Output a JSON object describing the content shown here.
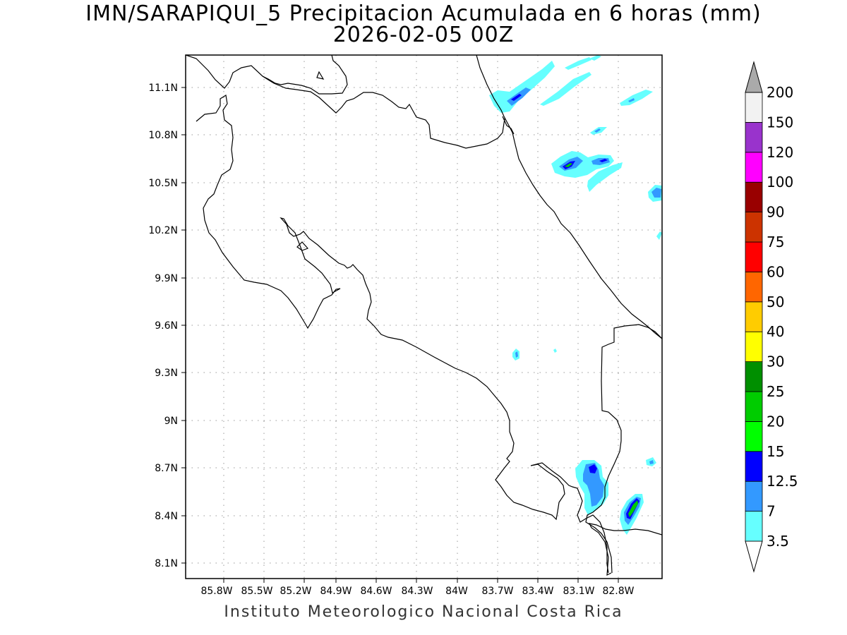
{
  "title": {
    "line1": "IMN/SARAPIQUI_5 Precipitacion Acumulada en 6 horas (mm)",
    "line2": "2026-02-05 00Z"
  },
  "footer": "Instituto Meteorologico Nacional Costa Rica",
  "map": {
    "lon_ticks": [
      "85.8W",
      "85.5W",
      "85.2W",
      "84.9W",
      "84.6W",
      "84.3W",
      "84W",
      "83.7W",
      "83.4W",
      "83.1W",
      "82.8W"
    ],
    "lat_ticks": [
      "11.1N",
      "10.8N",
      "10.5N",
      "10.2N",
      "9.9N",
      "9.6N",
      "9.3N",
      "9N",
      "8.7N",
      "8.4N",
      "8.1N"
    ],
    "lon_range": [
      "85.96W",
      "82.74W"
    ],
    "lat_range": [
      "8.00N",
      "11.30N"
    ],
    "grid": "dotted"
  },
  "colorbar": {
    "levels": [
      "3.5",
      "7",
      "12.5",
      "15",
      "20",
      "25",
      "30",
      "40",
      "50",
      "60",
      "75",
      "90",
      "100",
      "120",
      "150",
      "200"
    ],
    "colors": [
      "#66ffff",
      "#3399ff",
      "#0000ff",
      "#00ff00",
      "#00cc00",
      "#008f00",
      "#ffff00",
      "#ffcc00",
      "#ff6600",
      "#ff0000",
      "#cc3300",
      "#990000",
      "#ff00ff",
      "#9933cc",
      "#f2f2f2",
      "#aaaaaa"
    ]
  }
}
